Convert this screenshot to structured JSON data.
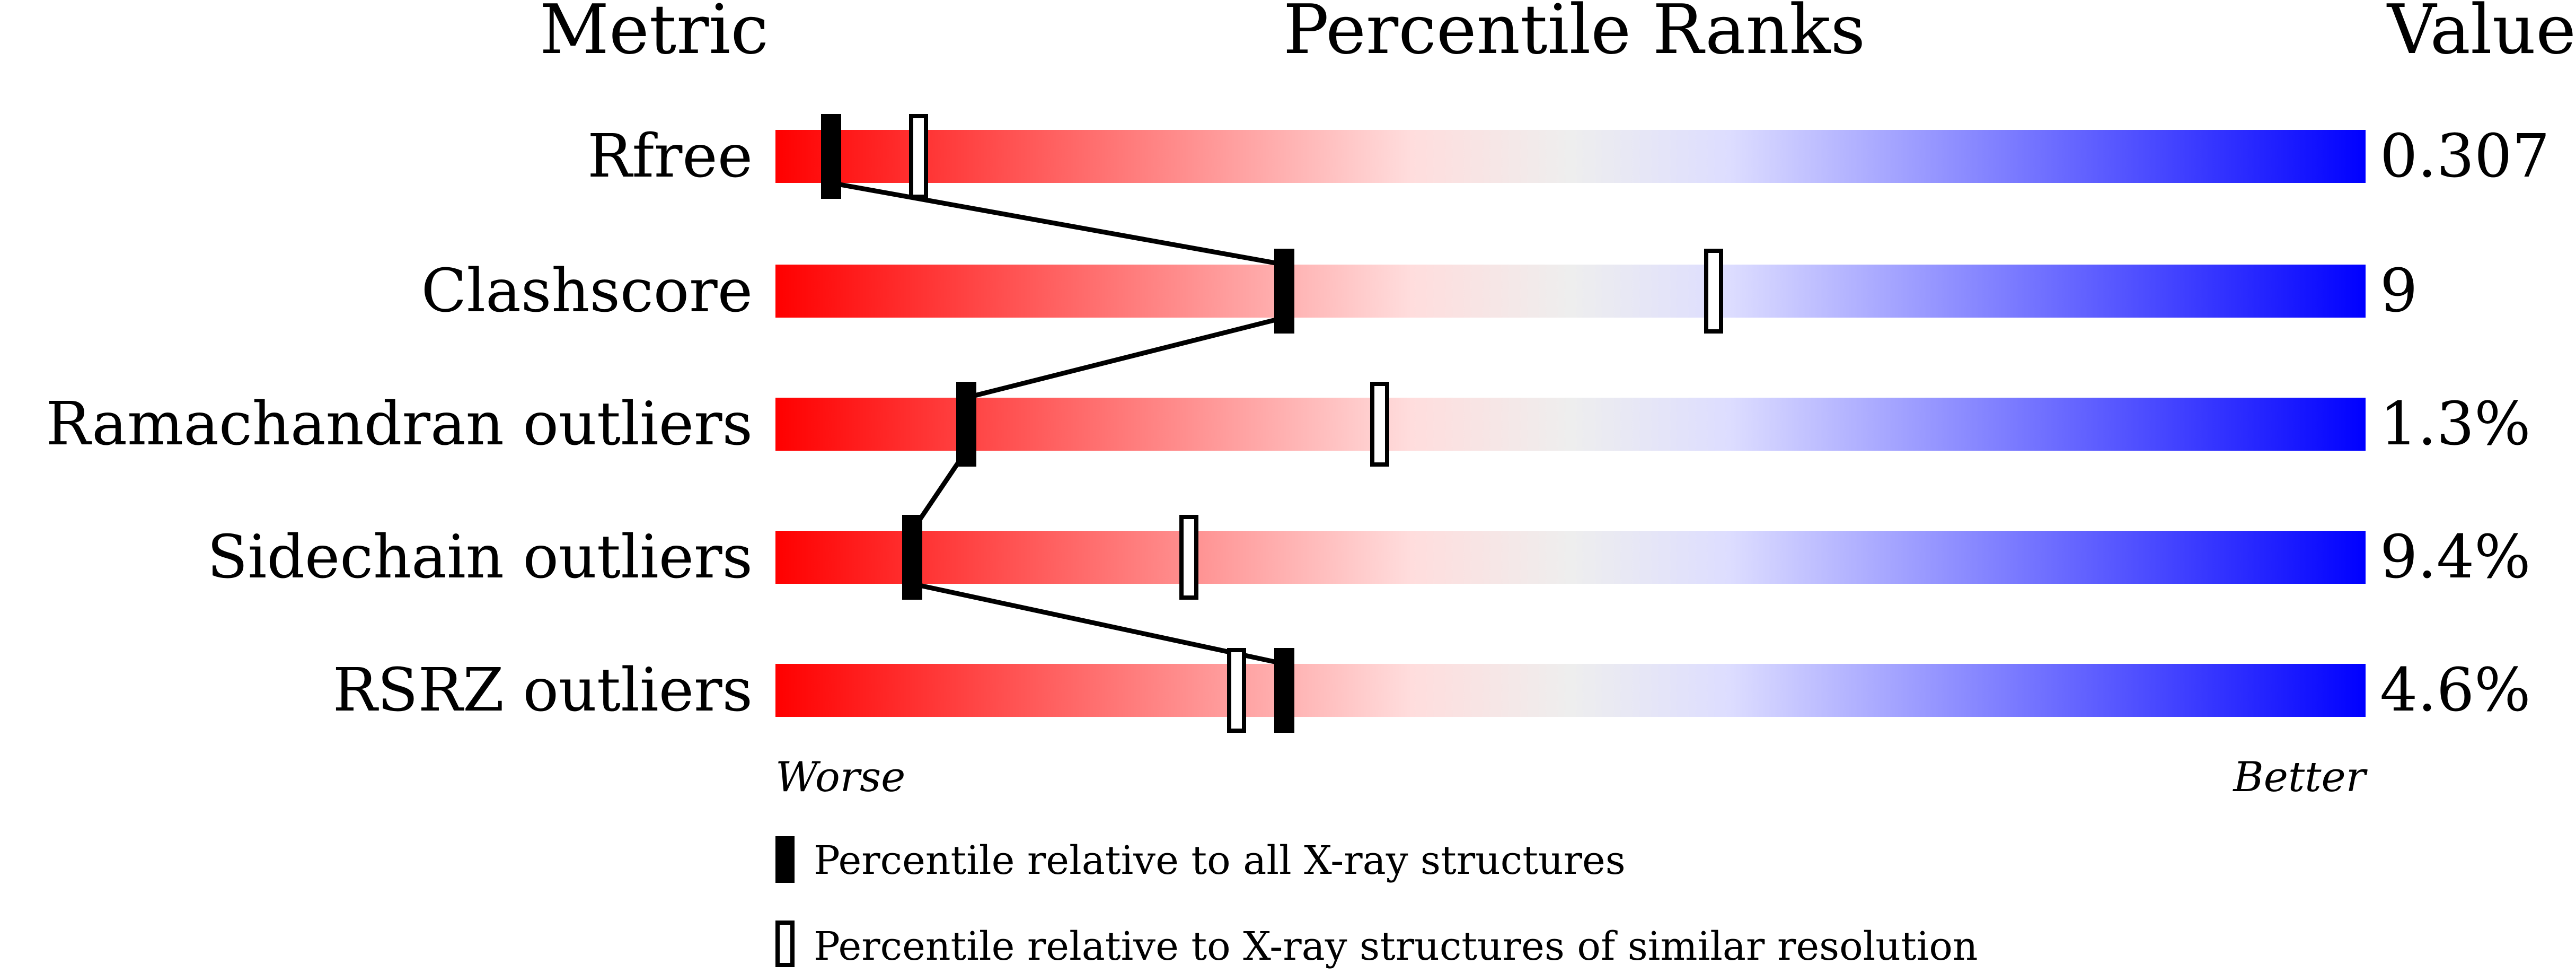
{
  "chart_data": {
    "type": "percentile-slider",
    "headers": {
      "metric": "Metric",
      "ranks": "Percentile Ranks",
      "value": "Value"
    },
    "xlim": [
      0,
      100
    ],
    "axis_ends": {
      "left": "Worse",
      "right": "Better"
    },
    "gradient_colors": [
      "#ff0000",
      "#ffdddd",
      "#eeeeee",
      "#ddddff",
      "#0000ff"
    ],
    "metrics": [
      {
        "name": "Rfree",
        "value": "0.307",
        "percentile_all": 3.5,
        "percentile_similar": 9
      },
      {
        "name": "Clashscore",
        "value": "9",
        "percentile_all": 32,
        "percentile_similar": 59
      },
      {
        "name": "Ramachandran outliers",
        "value": "1.3%",
        "percentile_all": 12,
        "percentile_similar": 38
      },
      {
        "name": "Sidechain outliers",
        "value": "9.4%",
        "percentile_all": 8.6,
        "percentile_similar": 26
      },
      {
        "name": "RSRZ outliers",
        "value": "4.6%",
        "percentile_all": 32,
        "percentile_similar": 29
      }
    ],
    "legend": {
      "all": "Percentile relative to all X-ray structures",
      "similar": "Percentile relative to X-ray structures of similar resolution"
    }
  }
}
